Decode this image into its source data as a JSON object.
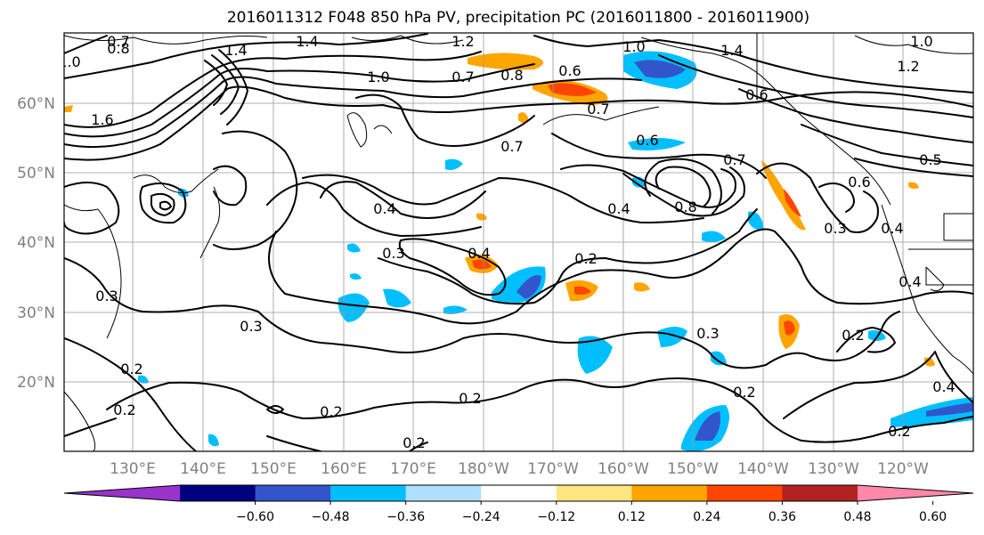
{
  "title": "2016011312 F048 850 hPa PV, precipitation PC (2016011800 - 2016011900)",
  "lat_labels": [
    "60°N",
    "50°N",
    "40°N",
    "30°N",
    "20°N"
  ],
  "lon_labels": [
    "130°E",
    "140°E",
    "150°E",
    "160°E",
    "170°E",
    "180°W",
    "170°W",
    "160°W",
    "150°W",
    "140°W",
    "130°W",
    "120°W"
  ],
  "colorbar": {
    "colors": [
      "#9933cc",
      "#000080",
      "#3355cc",
      "#00bfff",
      "#b0e0ff",
      "#ffffff",
      "#ffe680",
      "#ffa500",
      "#ff4500",
      "#b22222",
      "#ff88aa"
    ],
    "tick_labels": [
      "−0.60",
      "−0.48",
      "−0.36",
      "−0.24",
      "−0.12",
      "0.12",
      "0.24",
      "0.36",
      "0.48",
      "0.60"
    ]
  },
  "contour_labels": [
    "0.7",
    "0.8",
    "1.4",
    "1.4",
    "1.0",
    "1.2",
    "0.7",
    "0.8",
    "0.6",
    "1.0",
    "1.4",
    "1.2",
    "0.6",
    "1.0",
    "1.6",
    "1.0",
    "0.7",
    "0.6",
    "0.7",
    "0.5",
    "0.7",
    "0.4",
    "0.6",
    "0.8",
    "0.4",
    "0.3",
    "0.3",
    "0.4",
    "0.2",
    "0.4",
    "0.3",
    "0.3",
    "0.4",
    "0.3",
    "0.2",
    "0.2",
    "0.2",
    "0.2",
    "0.2",
    "0.2",
    "0.2",
    "0.2",
    "0.4"
  ]
}
